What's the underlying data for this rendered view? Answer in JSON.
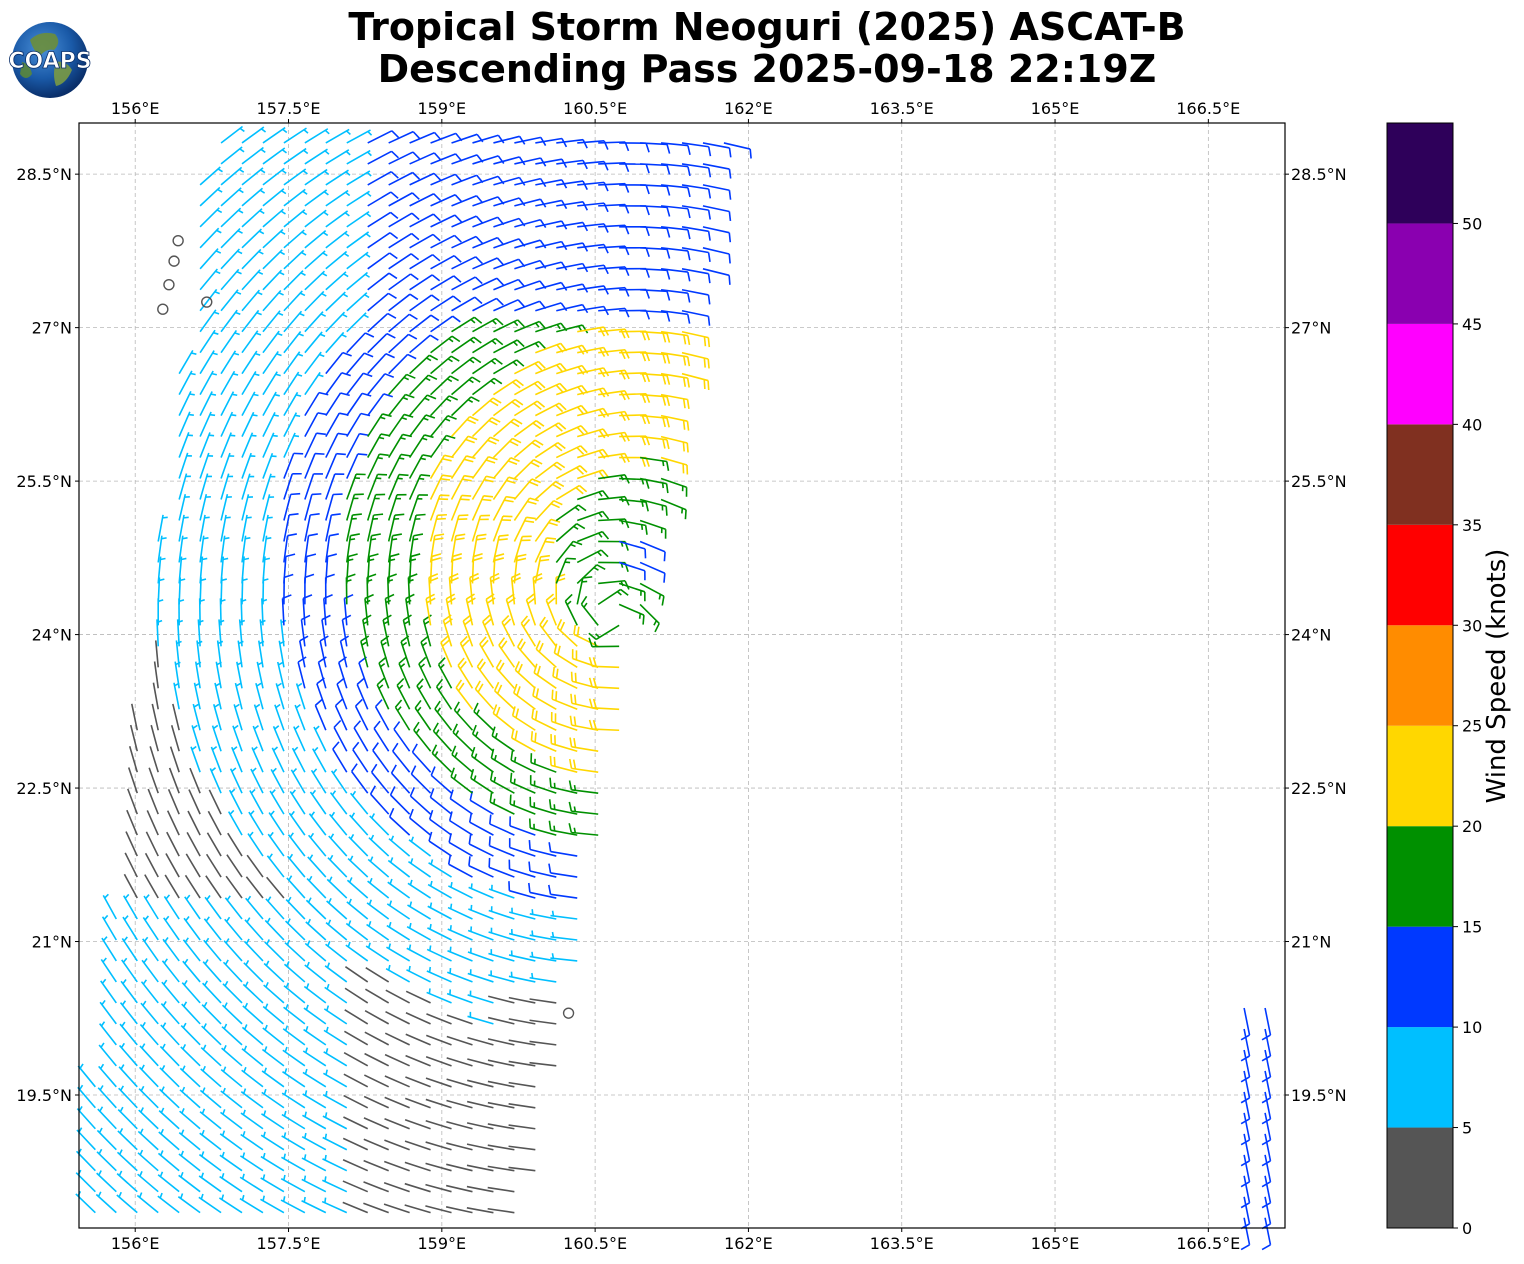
{
  "title": {
    "line1": "Tropical Storm Neoguri (2025) ASCAT-B",
    "line2": "Descending Pass 2025-09-18 22:19Z"
  },
  "logo": {
    "text": "COAPS"
  },
  "map": {
    "lon_range": [
      155.45,
      167.25
    ],
    "lat_range": [
      18.2,
      29.0
    ],
    "lon_ticks": [
      "156°E",
      "157.5°E",
      "159°E",
      "160.5°E",
      "162°E",
      "163.5°E",
      "165°E",
      "166.5°E"
    ],
    "lat_ticks": [
      "28.5°N",
      "27°N",
      "25.5°N",
      "24°N",
      "22.5°N",
      "21°N",
      "19.5°N"
    ],
    "lon_tick_values": [
      156,
      157.5,
      159,
      160.5,
      162,
      163.5,
      165,
      166.5
    ],
    "lat_tick_values": [
      28.5,
      27,
      25.5,
      24,
      22.5,
      21,
      19.5
    ]
  },
  "colorbar": {
    "label": "Wind Speed (knots)",
    "tick_labels": [
      "0",
      "5",
      "10",
      "15",
      "20",
      "25",
      "30",
      "35",
      "40",
      "45",
      "50"
    ],
    "bins": [
      {
        "from": 0,
        "to": 5,
        "color": "#555555"
      },
      {
        "from": 5,
        "to": 10,
        "color": "#00bfff"
      },
      {
        "from": 10,
        "to": 15,
        "color": "#0039ff"
      },
      {
        "from": 15,
        "to": 20,
        "color": "#009000"
      },
      {
        "from": 20,
        "to": 25,
        "color": "#ffd700"
      },
      {
        "from": 25,
        "to": 30,
        "color": "#ff8c00"
      },
      {
        "from": 30,
        "to": 35,
        "color": "#ff0000"
      },
      {
        "from": 35,
        "to": 40,
        "color": "#803020"
      },
      {
        "from": 40,
        "to": 45,
        "color": "#ff00ff"
      },
      {
        "from": 45,
        "to": 50,
        "color": "#8a00b0"
      },
      {
        "from": 50,
        "to": 55,
        "color": "#2e005a"
      }
    ]
  },
  "swath": {
    "center": {
      "lon": 160.95,
      "lat": 24.8
    },
    "rows_lat": [
      18.35,
      28.85
    ],
    "calm_points": [
      {
        "lon": 156.42,
        "lat": 27.85
      },
      {
        "lon": 156.38,
        "lat": 27.65
      },
      {
        "lon": 156.33,
        "lat": 27.42
      },
      {
        "lon": 156.27,
        "lat": 27.18
      },
      {
        "lon": 156.7,
        "lat": 27.25
      },
      {
        "lon": 160.24,
        "lat": 20.3
      }
    ],
    "east_strip_lon": [
      166.85,
      167.25
    ]
  }
}
